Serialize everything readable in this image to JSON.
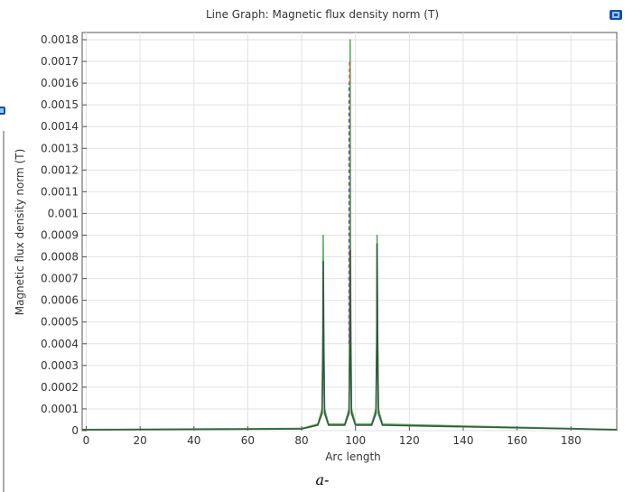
{
  "chart_data": {
    "type": "line",
    "title": "Line Graph: Magnetic flux density norm (T)",
    "xlabel": "Arc length",
    "ylabel": "Magnetic flux density norm (T)",
    "xlim": [
      -1.5,
      197
    ],
    "ylim": [
      0,
      0.00183
    ],
    "x_ticks": [
      0,
      20,
      40,
      60,
      80,
      100,
      120,
      140,
      160,
      180
    ],
    "x_tick_labels": [
      "0",
      "20",
      "40",
      "60",
      "80",
      "100",
      "120",
      "140",
      "160",
      "180"
    ],
    "y_ticks": [
      0,
      0.0001,
      0.0002,
      0.0003,
      0.0004,
      0.0005,
      0.0006,
      0.0007,
      0.0008,
      0.0009,
      0.001,
      0.0011,
      0.0012,
      0.0013,
      0.0014,
      0.0015,
      0.0016,
      0.0017,
      0.0018
    ],
    "y_tick_labels": [
      "0",
      "0.0001",
      "0.0002",
      "0.0003",
      "0.0004",
      "0.0005",
      "0.0006",
      "0.0007",
      "0.0008",
      "0.0009",
      "0.001",
      "0.0011",
      "0.0012",
      "0.0013",
      "0.0014",
      "0.0015",
      "0.0016",
      "0.0017",
      "0.0018"
    ],
    "grid": true,
    "series": [
      {
        "color": "#5aaa5a",
        "x": [
          -1.5,
          80,
          86,
          87.6,
          87.9,
          88.0,
          88.2,
          88.5,
          90,
          96,
          97.6,
          97.9,
          98.0,
          98.2,
          98.5,
          100,
          106,
          107.6,
          107.9,
          108.0,
          108.2,
          108.5,
          110,
          197
        ],
        "y": [
          5e-06,
          1e-05,
          3e-05,
          0.0001,
          0.00045,
          0.0009,
          0.00045,
          0.0001,
          3e-05,
          3e-05,
          0.0001,
          0.0006,
          0.0018,
          0.0006,
          0.0001,
          3e-05,
          3e-05,
          0.0001,
          0.00045,
          0.0009,
          0.00045,
          0.0001,
          3e-05,
          5e-06
        ]
      },
      {
        "color": "#2e5a3a",
        "x": [
          -1.5,
          80,
          86,
          87.6,
          87.9,
          88.0,
          88.2,
          88.5,
          90,
          96,
          97.6,
          97.9,
          98.0,
          98.2,
          98.5,
          100,
          106,
          107.6,
          107.9,
          108.0,
          108.2,
          108.5,
          110,
          197
        ],
        "y": [
          4e-06,
          8e-06,
          2.5e-05,
          8e-05,
          0.0004,
          0.00078,
          0.0004,
          8e-05,
          2.5e-05,
          2.5e-05,
          8e-05,
          0.0004,
          0.00083,
          0.0004,
          8e-05,
          2.5e-05,
          2.5e-05,
          8e-05,
          0.0004,
          0.00086,
          0.0004,
          8e-05,
          2.5e-05,
          4e-06
        ]
      },
      {
        "color": "#e03030",
        "dashed": true,
        "x": [
          97.75,
          97.75
        ],
        "y": [
          0.0004,
          0.0017
        ]
      },
      {
        "color": "#4060c0",
        "dashed": true,
        "x": [
          97.55,
          97.55
        ],
        "y": [
          0.0004,
          0.0016
        ]
      }
    ]
  },
  "caption": "a-",
  "icons": {
    "top_right": "camera-icon",
    "left_edge": "camera-icon"
  }
}
